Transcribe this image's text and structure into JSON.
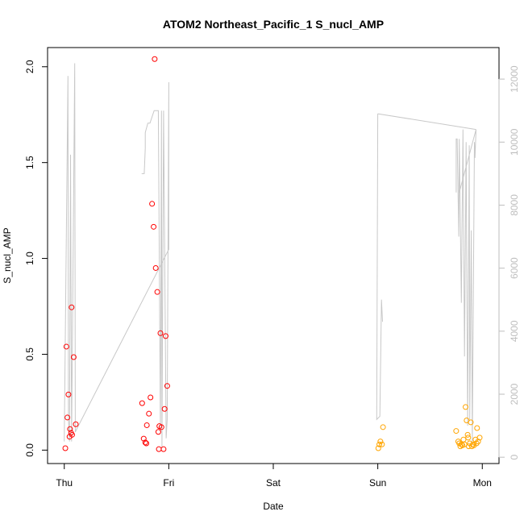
{
  "chart_data": {
    "type": "scatter",
    "title": "ATOM2 Northeast_Pacific_1 S_nucl_AMP",
    "xlabel": "Date",
    "ylabel": "S_nucl_AMP",
    "x_ticks": [
      {
        "label": "Thu",
        "value": 0
      },
      {
        "label": "Fri",
        "value": 1
      },
      {
        "label": "Sat",
        "value": 2
      },
      {
        "label": "Sun",
        "value": 3
      },
      {
        "label": "Mon",
        "value": 4
      }
    ],
    "xlim": [
      -0.16,
      4.16
    ],
    "ylim": [
      -0.07,
      2.1
    ],
    "y_ticks": [
      {
        "label": "0.0",
        "value": 0.0
      },
      {
        "label": "0.5",
        "value": 0.5
      },
      {
        "label": "1.0",
        "value": 1.0
      },
      {
        "label": "1.5",
        "value": 1.5
      },
      {
        "label": "2.0",
        "value": 2.0
      }
    ],
    "right_axis": {
      "ylim": [
        -200,
        13000
      ],
      "ticks": [
        {
          "label": "0",
          "value": 0
        },
        {
          "label": "2000",
          "value": 2000
        },
        {
          "label": "4000",
          "value": 4000
        },
        {
          "label": "6000",
          "value": 6000
        },
        {
          "label": "8000",
          "value": 8000
        },
        {
          "label": "10000",
          "value": 10000
        },
        {
          "label": "12000",
          "value": 12000
        }
      ],
      "color": "#bebebe"
    },
    "line_color": "#c8c8c8",
    "series": [
      {
        "color": "#ff0000",
        "points": [
          [
            0.01,
            0.01
          ],
          [
            0.02,
            0.54
          ],
          [
            0.03,
            0.17
          ],
          [
            0.04,
            0.29
          ],
          [
            0.05,
            0.07
          ],
          [
            0.055,
            0.11
          ],
          [
            0.065,
            0.09
          ],
          [
            0.07,
            0.745
          ],
          [
            0.075,
            0.08
          ],
          [
            0.09,
            0.485
          ],
          [
            0.11,
            0.135
          ],
          [
            0.745,
            0.245
          ],
          [
            0.76,
            0.06
          ],
          [
            0.775,
            0.04
          ],
          [
            0.785,
            0.035
          ],
          [
            0.79,
            0.13
          ],
          [
            0.81,
            0.19
          ],
          [
            0.825,
            0.275
          ],
          [
            0.84,
            1.285
          ],
          [
            0.855,
            1.165
          ],
          [
            0.865,
            2.04
          ],
          [
            0.875,
            0.95
          ],
          [
            0.89,
            0.825
          ],
          [
            0.9,
            0.095
          ],
          [
            0.905,
            0.005
          ],
          [
            0.91,
            0.125
          ],
          [
            0.92,
            0.61
          ],
          [
            0.93,
            0.12
          ],
          [
            0.95,
            0.005
          ],
          [
            0.96,
            0.215
          ],
          [
            0.97,
            0.595
          ],
          [
            0.985,
            0.335
          ]
        ]
      },
      {
        "color": "#ffa500",
        "points": [
          [
            3.005,
            0.01
          ],
          [
            3.015,
            0.03
          ],
          [
            3.025,
            0.045
          ],
          [
            3.04,
            0.03
          ],
          [
            3.05,
            0.12
          ],
          [
            3.75,
            0.1
          ],
          [
            3.77,
            0.045
          ],
          [
            3.78,
            0.035
          ],
          [
            3.79,
            0.02
          ],
          [
            3.8,
            0.03
          ],
          [
            3.81,
            0.025
          ],
          [
            3.82,
            0.055
          ],
          [
            3.83,
            0.03
          ],
          [
            3.84,
            0.225
          ],
          [
            3.85,
            0.155
          ],
          [
            3.86,
            0.08
          ],
          [
            3.865,
            0.065
          ],
          [
            3.87,
            0.02
          ],
          [
            3.88,
            0.035
          ],
          [
            3.89,
            0.145
          ],
          [
            3.9,
            0.02
          ],
          [
            3.91,
            0.03
          ],
          [
            3.92,
            0.025
          ],
          [
            3.935,
            0.055
          ],
          [
            3.945,
            0.035
          ],
          [
            3.95,
            0.115
          ],
          [
            3.96,
            0.045
          ],
          [
            3.975,
            0.065
          ]
        ]
      }
    ],
    "line_series": {
      "axis": "right",
      "points": [
        [
          0.0,
          500
        ],
        [
          0.035,
          12100
        ],
        [
          0.04,
          1200
        ],
        [
          0.05,
          500
        ],
        [
          0.06,
          9600
        ],
        [
          0.07,
          500
        ],
        [
          0.1,
          12500
        ],
        [
          0.105,
          800
        ],
        [
          0.12,
          900
        ],
        [
          1.0,
          6600
        ],
        [
          1.0,
          11900
        ],
        [
          0.985,
          1200
        ],
        [
          0.975,
          600
        ],
        [
          0.95,
          11000
        ],
        [
          0.935,
          300
        ],
        [
          0.93,
          11000
        ],
        [
          0.92,
          800
        ],
        [
          0.9,
          11000
        ],
        [
          0.885,
          11000
        ],
        [
          0.86,
          11000
        ],
        [
          0.85,
          10900
        ],
        [
          0.82,
          10600
        ],
        [
          0.8,
          10600
        ],
        [
          0.775,
          10300
        ],
        [
          0.775,
          9800
        ],
        [
          0.765,
          9000
        ],
        [
          0.74,
          9000
        ],
        [
          null,
          null
        ],
        [
          3.0,
          10900
        ],
        [
          2.99,
          1200
        ],
        [
          3.02,
          1300
        ],
        [
          3.035,
          5000
        ],
        [
          3.045,
          4300
        ],
        [
          null,
          null
        ],
        [
          3.75,
          8400
        ],
        [
          3.75,
          10100
        ],
        [
          3.76,
          10100
        ],
        [
          3.775,
          7000
        ],
        [
          3.78,
          10100
        ],
        [
          3.8,
          4900
        ],
        [
          3.815,
          10400
        ],
        [
          3.83,
          3200
        ],
        [
          3.845,
          10000
        ],
        [
          3.86,
          1000
        ],
        [
          3.875,
          9900
        ],
        [
          3.88,
          1200
        ],
        [
          3.895,
          7200
        ],
        [
          3.905,
          500
        ],
        [
          3.925,
          10000
        ],
        [
          3.93,
          9500
        ],
        [
          3.94,
          10400
        ],
        [
          3.78,
          8400
        ],
        [
          null,
          null
        ],
        [
          3.0,
          10900
        ],
        [
          3.94,
          10400
        ]
      ]
    }
  }
}
